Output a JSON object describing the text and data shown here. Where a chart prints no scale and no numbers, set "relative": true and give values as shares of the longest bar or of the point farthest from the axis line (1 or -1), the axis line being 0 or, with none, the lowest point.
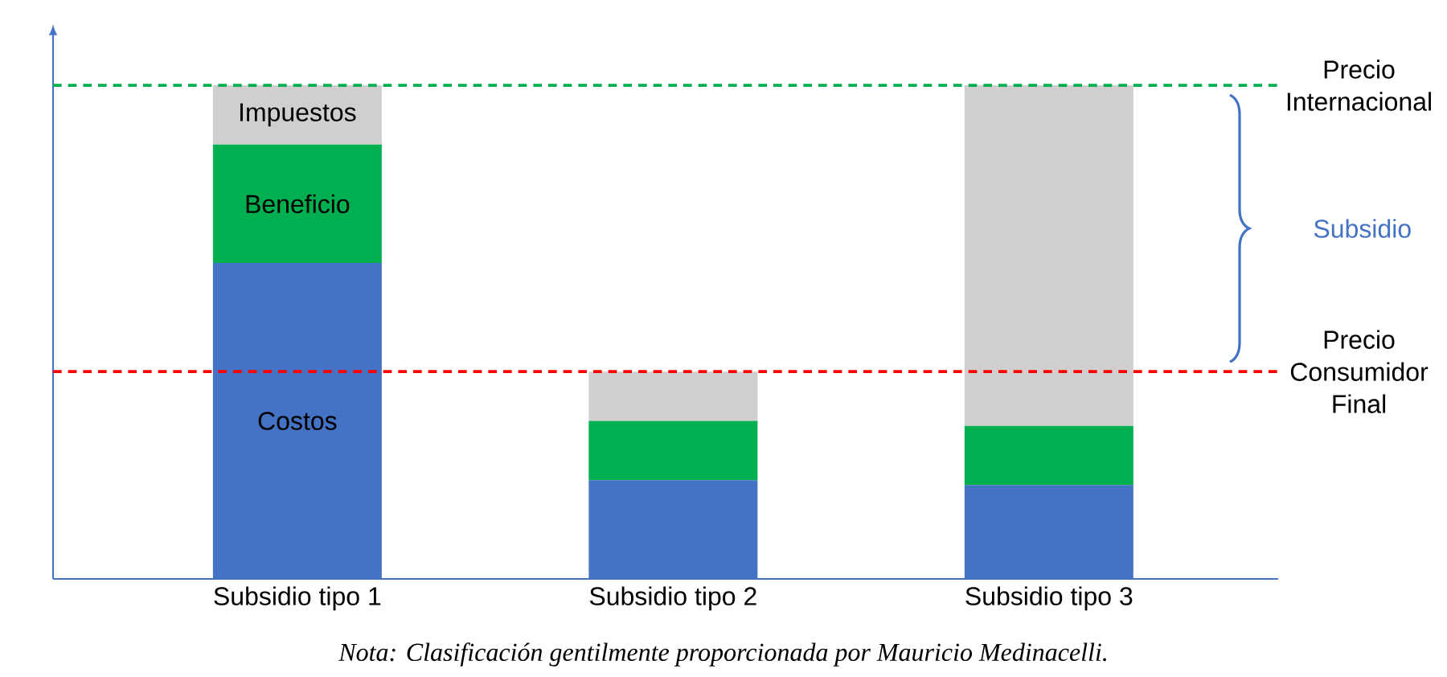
{
  "chart_data": {
    "type": "bar",
    "stacked": true,
    "relative": true,
    "legend": false,
    "categories": [
      "Subsidio tipo 1",
      "Subsidio tipo 2",
      "Subsidio tipo 3"
    ],
    "series": [
      {
        "name": "Costos",
        "color": "#4472c4",
        "values": [
          0.64,
          0.2,
          0.19
        ]
      },
      {
        "name": "Beneficio",
        "color": "#00b050",
        "values": [
          0.24,
          0.12,
          0.12
        ]
      },
      {
        "name": "Impuestos",
        "color": "#d0cece",
        "values": [
          0.12,
          0.1,
          0.69
        ]
      }
    ],
    "ref_lines": [
      {
        "axis": "y",
        "value": 1.0,
        "label": "Precio Internacional",
        "color": "#00b050",
        "line_style": "dashed"
      },
      {
        "axis": "y",
        "value": 0.42,
        "label": "Precio Consumidor Final",
        "color": "#ff0000",
        "line_style": "dashed"
      }
    ],
    "annotations": [
      "Subsidio",
      "Nota: Clasificación gentilmente proporcionada por Mauricio Medinacelli."
    ]
  }
}
